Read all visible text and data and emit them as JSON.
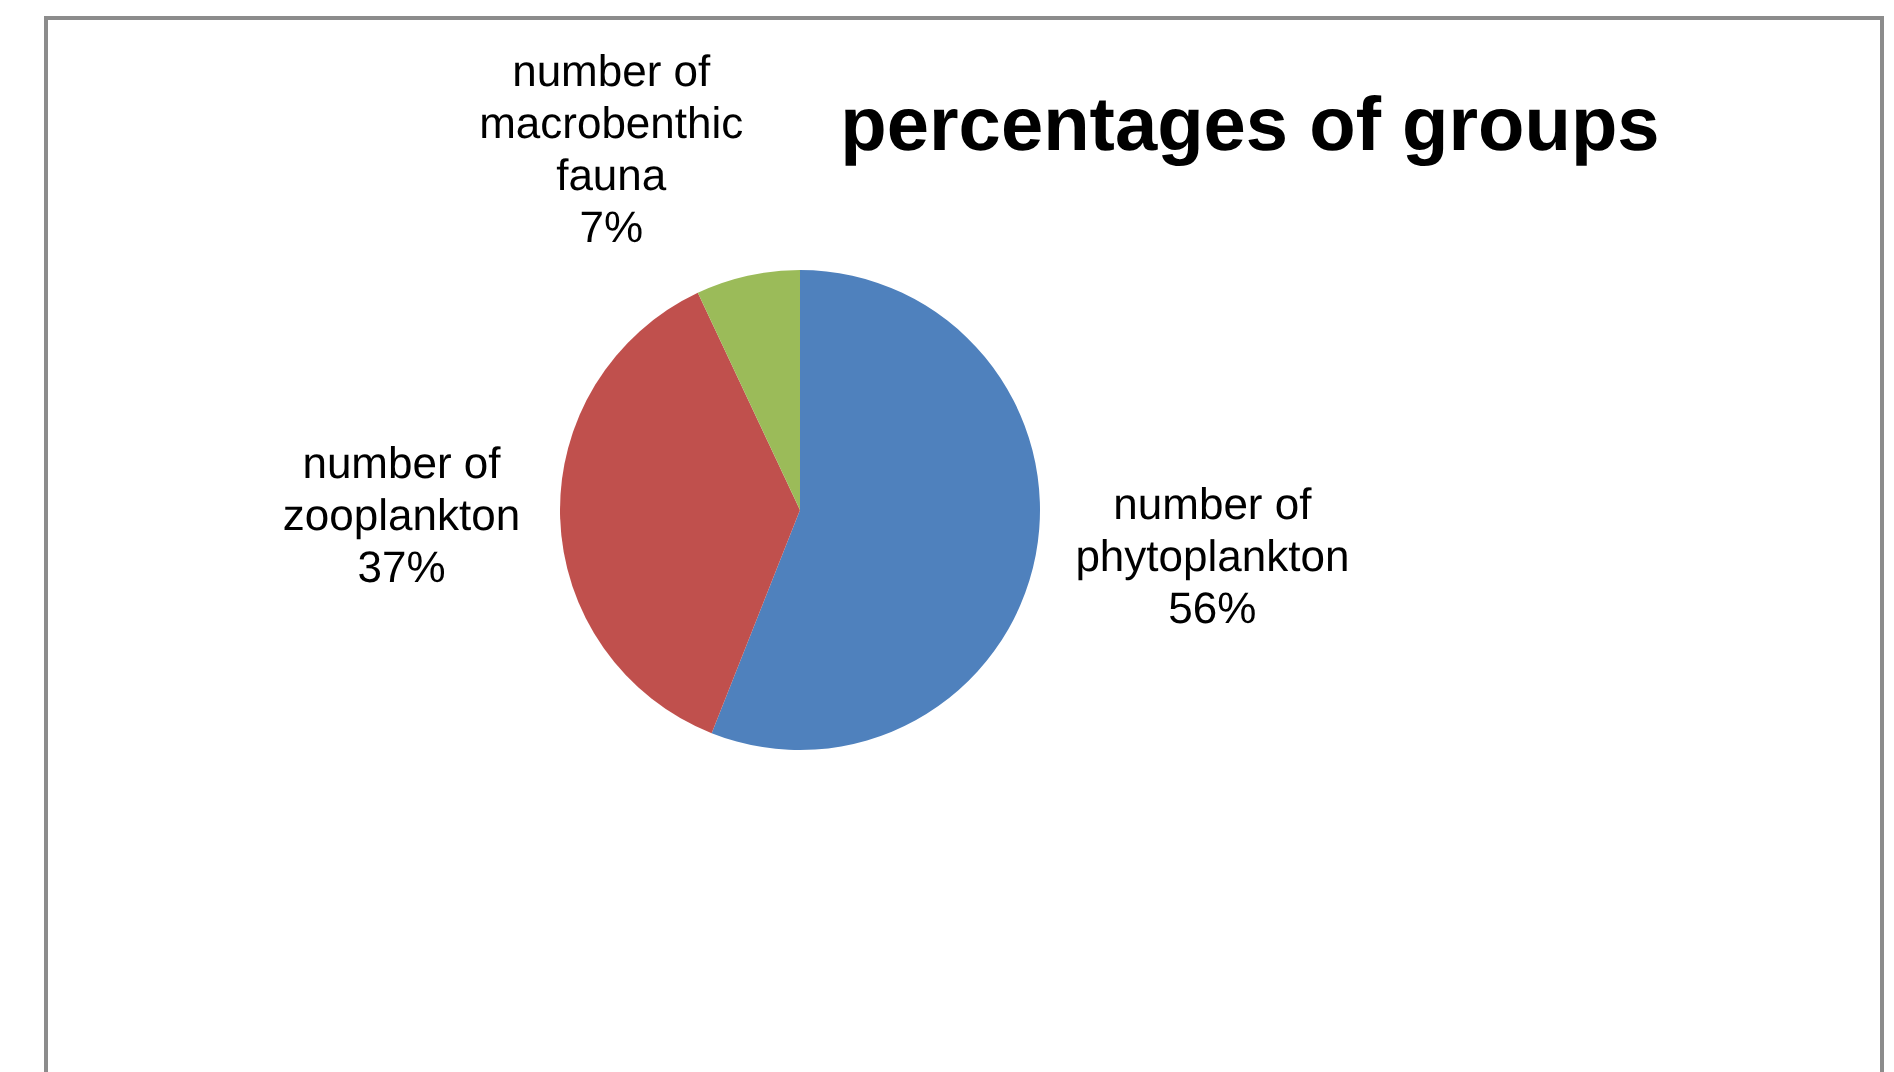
{
  "chart_data": {
    "type": "pie",
    "title": "percentages of groups",
    "categories": [
      "number of phytoplankton",
      "number of zooplankton",
      "number of macrobenthic fauna"
    ],
    "values": [
      56,
      37,
      7
    ],
    "colors": [
      "#4f81bd",
      "#c0504d",
      "#9bbb59"
    ],
    "value_labels": [
      "56%",
      "37%",
      "7%"
    ],
    "legend": false
  }
}
